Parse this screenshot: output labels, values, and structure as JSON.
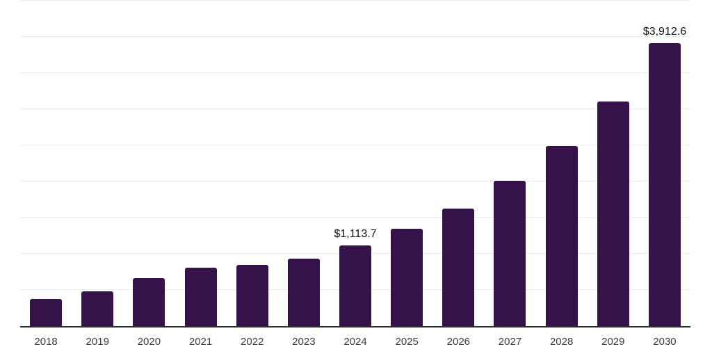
{
  "chart_data": {
    "type": "bar",
    "title": "",
    "xlabel": "",
    "ylabel": "",
    "categories": [
      "2018",
      "2019",
      "2020",
      "2021",
      "2022",
      "2023",
      "2024",
      "2025",
      "2026",
      "2027",
      "2028",
      "2029",
      "2030"
    ],
    "values": [
      375,
      480,
      665,
      805,
      850,
      930,
      1113.7,
      1348,
      1630,
      2010,
      2495,
      3105,
      3912.6
    ],
    "labeled_points": [
      {
        "category": "2024",
        "label": "$1,113.7"
      },
      {
        "category": "2030",
        "label": "$3,912.6"
      }
    ],
    "ylim": [
      0,
      4500
    ],
    "gridline_step": 500,
    "grid": "horizontal",
    "y_axis_tick_labels": "hidden",
    "legend_position": "none",
    "colors": {
      "bar": "#36124B",
      "axis": "#2e2e2e",
      "gridline": "#ededed",
      "tick_label": "#3c3c3c",
      "data_label": "#101010",
      "background": "#ffffff"
    }
  }
}
